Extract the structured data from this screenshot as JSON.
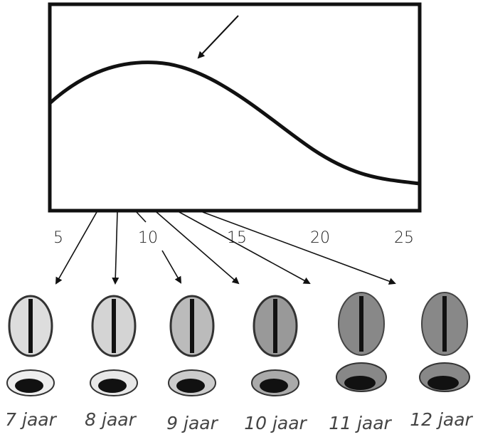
{
  "axis_labels": [
    "5",
    "10",
    "15",
    "20",
    "25"
  ],
  "ages": [
    "7 jaar",
    "8 jaar",
    "9 jaar",
    "10 jaar",
    "11 jaar",
    "12 jaar"
  ]
}
